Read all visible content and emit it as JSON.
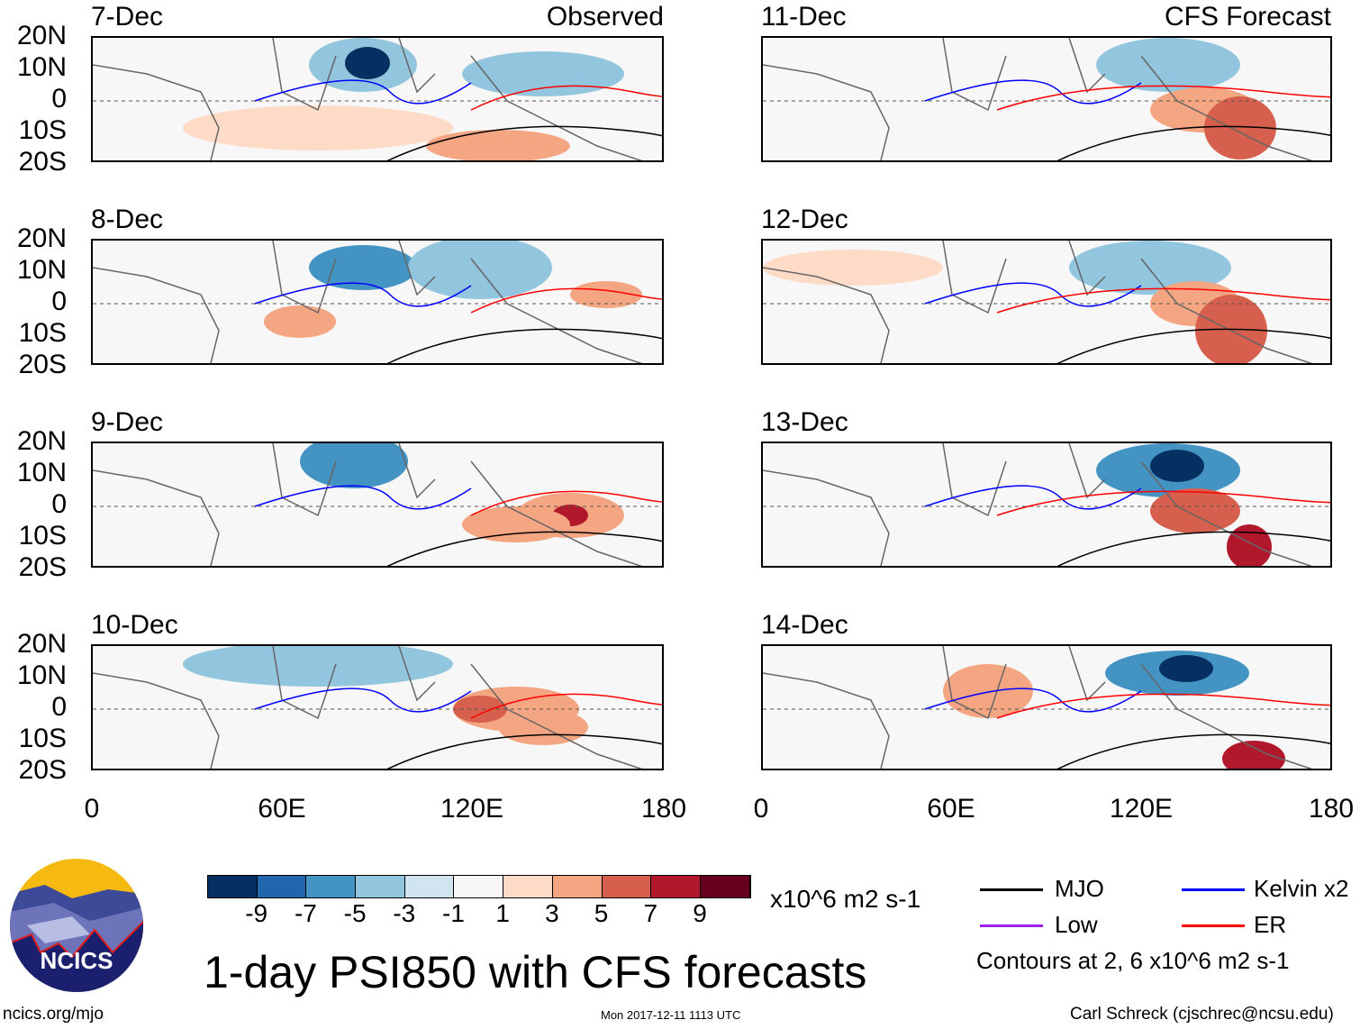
{
  "headers": {
    "observed": "Observed",
    "forecast": "CFS Forecast"
  },
  "panels_left": [
    {
      "date": "7-Dec"
    },
    {
      "date": "8-Dec"
    },
    {
      "date": "9-Dec"
    },
    {
      "date": "10-Dec"
    }
  ],
  "panels_right": [
    {
      "date": "11-Dec"
    },
    {
      "date": "12-Dec"
    },
    {
      "date": "13-Dec"
    },
    {
      "date": "14-Dec"
    }
  ],
  "lat_labels": [
    "20N",
    "10N",
    "0",
    "10S",
    "20S"
  ],
  "lon_labels": [
    "0",
    "60E",
    "120E",
    "180"
  ],
  "colorbar": {
    "colors": [
      "#053061",
      "#2166ac",
      "#4393c3",
      "#92c5de",
      "#d1e5f0",
      "#f7f7f7",
      "#fddbc7",
      "#f4a582",
      "#d6604d",
      "#b2182b",
      "#67001f"
    ],
    "labels": [
      "-9",
      "-7",
      "-5",
      "-3",
      "-1",
      "1",
      "3",
      "5",
      "7",
      "9"
    ],
    "units": "x10^6 m2 s-1"
  },
  "legend": {
    "items": [
      {
        "label": "MJO",
        "color": "#000000"
      },
      {
        "label": "Kelvin x2",
        "color": "#0000ff"
      },
      {
        "label": "Low",
        "color": "#a020f0"
      },
      {
        "label": "ER",
        "color": "#ff0000"
      }
    ],
    "note": "Contours at 2, 6 x10^6 m2 s-1"
  },
  "title": "1-day PSI850 with CFS forecasts",
  "logo_text": "NCICS",
  "footer": {
    "url": "ncics.org/mjo",
    "timestamp": "Mon 2017-12-11 1113 UTC",
    "credit": "Carl Schreck (cjschrec@ncsu.edu)"
  }
}
